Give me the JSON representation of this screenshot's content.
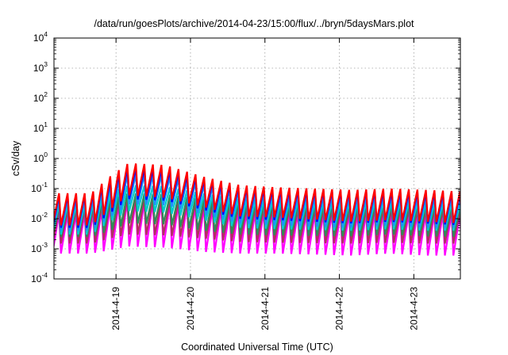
{
  "chart_data": {
    "type": "line",
    "title": "/data/run/goesPlots/archive/2014-04-23/15:00/flux/../bryn/5daysMars.plot",
    "xlabel": "Coordinated Universal Time (UTC)",
    "ylabel": "cSv/day",
    "yscale": "log",
    "ylim": [
      0.0001,
      10000
    ],
    "y_ticks": [
      {
        "base": "10",
        "exp": "-4",
        "value": 0.0001
      },
      {
        "base": "10",
        "exp": "-3",
        "value": 0.001
      },
      {
        "base": "10",
        "exp": "-2",
        "value": 0.01
      },
      {
        "base": "10",
        "exp": "-1",
        "value": 0.1
      },
      {
        "base": "10",
        "exp": "0",
        "value": 1
      },
      {
        "base": "10",
        "exp": "1",
        "value": 10
      },
      {
        "base": "10",
        "exp": "2",
        "value": 100
      },
      {
        "base": "10",
        "exp": "3",
        "value": 1000
      },
      {
        "base": "10",
        "exp": "4",
        "value": 10000
      }
    ],
    "xlim": [
      "2014-04-18T04:00",
      "2014-04-23T15:00"
    ],
    "x_ticks": [
      {
        "label": "2014-4-19",
        "value": "2014-04-19T00:00"
      },
      {
        "label": "2014-4-20",
        "value": "2014-04-20T00:00"
      },
      {
        "label": "2014-4-21",
        "value": "2014-04-21T00:00"
      },
      {
        "label": "2014-4-22",
        "value": "2014-04-22T00:00"
      },
      {
        "label": "2014-4-23",
        "value": "2014-04-23T00:00"
      }
    ],
    "grid": true,
    "sawtooth_period_hours": 2.75,
    "envelope_hours": [
      0,
      12,
      18,
      24,
      36,
      48,
      60,
      72,
      96,
      108,
      120,
      132
    ],
    "series": [
      {
        "color": "#ff0000",
        "peaks": [
          0.07,
          0.07,
          0.25,
          0.7,
          0.6,
          0.25,
          0.13,
          0.11,
          0.09,
          0.1,
          0.09,
          0.08
        ],
        "troughs": [
          0.006,
          0.006,
          0.02,
          0.06,
          0.05,
          0.025,
          0.012,
          0.011,
          0.008,
          0.009,
          0.008,
          0.007
        ]
      },
      {
        "color": "#0000ff",
        "peaks": [
          0.06,
          0.06,
          0.2,
          0.5,
          0.45,
          0.2,
          0.11,
          0.09,
          0.08,
          0.08,
          0.075,
          0.07
        ],
        "troughs": [
          0.005,
          0.005,
          0.015,
          0.045,
          0.04,
          0.02,
          0.01,
          0.009,
          0.007,
          0.008,
          0.007,
          0.006
        ]
      },
      {
        "color": "#1e90ff",
        "peaks": [
          0.045,
          0.045,
          0.13,
          0.3,
          0.28,
          0.14,
          0.08,
          0.065,
          0.055,
          0.06,
          0.055,
          0.05
        ],
        "troughs": [
          0.004,
          0.004,
          0.011,
          0.03,
          0.028,
          0.014,
          0.007,
          0.006,
          0.005,
          0.006,
          0.005,
          0.005
        ]
      },
      {
        "color": "#00cccc",
        "peaks": [
          0.03,
          0.03,
          0.07,
          0.13,
          0.12,
          0.07,
          0.045,
          0.04,
          0.035,
          0.038,
          0.035,
          0.033
        ],
        "troughs": [
          0.003,
          0.003,
          0.008,
          0.018,
          0.016,
          0.009,
          0.005,
          0.0045,
          0.004,
          0.0045,
          0.004,
          0.004
        ]
      },
      {
        "color": "#2e8b57",
        "peaks": [
          0.028,
          0.028,
          0.045,
          0.07,
          0.065,
          0.045,
          0.035,
          0.03,
          0.028,
          0.03,
          0.028,
          0.027
        ],
        "troughs": [
          0.0025,
          0.0025,
          0.004,
          0.007,
          0.0065,
          0.004,
          0.003,
          0.0028,
          0.0026,
          0.003,
          0.0026,
          0.0025
        ]
      },
      {
        "color": "#b03060",
        "peaks": [
          0.02,
          0.02,
          0.035,
          0.05,
          0.045,
          0.033,
          0.025,
          0.022,
          0.02,
          0.022,
          0.02,
          0.02
        ],
        "troughs": [
          0.0015,
          0.0015,
          0.0022,
          0.003,
          0.0028,
          0.0022,
          0.0017,
          0.0016,
          0.0015,
          0.0016,
          0.0015,
          0.0015
        ]
      },
      {
        "color": "#ff00ff",
        "peaks": [
          0.015,
          0.015,
          0.025,
          0.04,
          0.035,
          0.025,
          0.018,
          0.016,
          0.015,
          0.016,
          0.015,
          0.015
        ],
        "troughs": [
          0.0007,
          0.0007,
          0.0009,
          0.0012,
          0.0011,
          0.0008,
          0.0007,
          0.0007,
          0.0006,
          0.0007,
          0.0006,
          0.0006
        ]
      }
    ]
  }
}
